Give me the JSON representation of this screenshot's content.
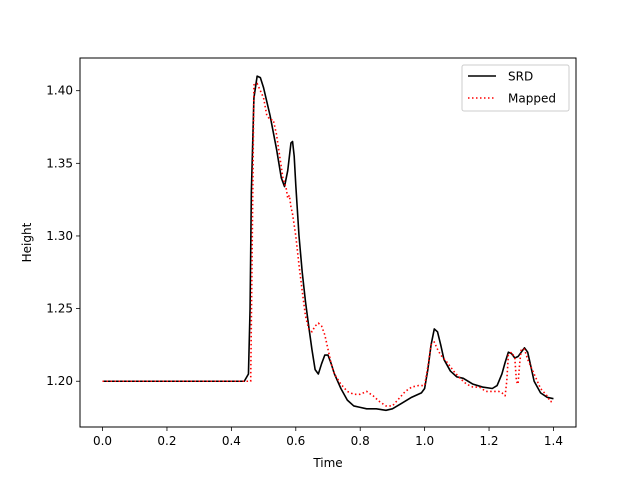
{
  "chart_data": {
    "type": "line",
    "xlabel": "Time",
    "ylabel": "Height",
    "xlim": [
      -0.07,
      1.47
    ],
    "ylim": [
      1.1685,
      1.4225
    ],
    "xticks": [
      0.0,
      0.2,
      0.4,
      0.6,
      0.8,
      1.0,
      1.2,
      1.4
    ],
    "xtick_labels": [
      "0.0",
      "0.2",
      "0.4",
      "0.6",
      "0.8",
      "1.0",
      "1.2",
      "1.4"
    ],
    "yticks": [
      1.2,
      1.25,
      1.3,
      1.35,
      1.4
    ],
    "ytick_labels": [
      "1.20",
      "1.25",
      "1.30",
      "1.35",
      "1.40"
    ],
    "grid": false,
    "legend_position": "top-right",
    "series": [
      {
        "name": "SRD",
        "color": "#000000",
        "style": "solid",
        "x": [
          0.0,
          0.2,
          0.44,
          0.453,
          0.458,
          0.462,
          0.47,
          0.48,
          0.49,
          0.5,
          0.52,
          0.54,
          0.555,
          0.565,
          0.575,
          0.585,
          0.59,
          0.595,
          0.6,
          0.61,
          0.62,
          0.63,
          0.64,
          0.65,
          0.66,
          0.67,
          0.68,
          0.69,
          0.7,
          0.71,
          0.72,
          0.74,
          0.76,
          0.78,
          0.8,
          0.82,
          0.85,
          0.88,
          0.9,
          0.93,
          0.96,
          0.99,
          1.0,
          1.01,
          1.02,
          1.03,
          1.04,
          1.05,
          1.06,
          1.08,
          1.1,
          1.12,
          1.15,
          1.18,
          1.21,
          1.225,
          1.24,
          1.25,
          1.26,
          1.27,
          1.28,
          1.29,
          1.3,
          1.31,
          1.32,
          1.33,
          1.34,
          1.36,
          1.38,
          1.4
        ],
        "y": [
          1.2,
          1.2,
          1.2,
          1.205,
          1.25,
          1.33,
          1.395,
          1.41,
          1.409,
          1.402,
          1.383,
          1.36,
          1.34,
          1.334,
          1.345,
          1.364,
          1.365,
          1.355,
          1.335,
          1.3,
          1.275,
          1.255,
          1.238,
          1.222,
          1.208,
          1.205,
          1.212,
          1.218,
          1.218,
          1.212,
          1.205,
          1.195,
          1.187,
          1.183,
          1.182,
          1.181,
          1.181,
          1.18,
          1.181,
          1.185,
          1.189,
          1.192,
          1.195,
          1.208,
          1.225,
          1.236,
          1.234,
          1.225,
          1.215,
          1.207,
          1.203,
          1.202,
          1.198,
          1.196,
          1.195,
          1.197,
          1.205,
          1.213,
          1.22,
          1.219,
          1.216,
          1.217,
          1.22,
          1.223,
          1.22,
          1.21,
          1.2,
          1.192,
          1.189,
          1.188
        ]
      },
      {
        "name": "Mapped",
        "color": "#ff0000",
        "style": "dotted",
        "x": [
          0.0,
          0.2,
          0.45,
          0.46,
          0.465,
          0.47,
          0.48,
          0.49,
          0.5,
          0.51,
          0.52,
          0.53,
          0.54,
          0.55,
          0.56,
          0.57,
          0.575,
          0.58,
          0.585,
          0.59,
          0.6,
          0.61,
          0.62,
          0.63,
          0.64,
          0.65,
          0.66,
          0.67,
          0.68,
          0.69,
          0.7,
          0.71,
          0.72,
          0.74,
          0.76,
          0.78,
          0.8,
          0.82,
          0.84,
          0.86,
          0.88,
          0.9,
          0.92,
          0.94,
          0.96,
          0.98,
          1.0,
          1.01,
          1.02,
          1.03,
          1.04,
          1.05,
          1.07,
          1.09,
          1.11,
          1.13,
          1.15,
          1.17,
          1.19,
          1.21,
          1.23,
          1.24,
          1.25,
          1.255,
          1.26,
          1.27,
          1.28,
          1.285,
          1.29,
          1.295,
          1.3,
          1.31,
          1.32,
          1.34,
          1.36,
          1.38,
          1.39,
          1.4
        ],
        "y": [
          1.2,
          1.2,
          1.2,
          1.2,
          1.3,
          1.404,
          1.405,
          1.4,
          1.395,
          1.383,
          1.38,
          1.38,
          1.37,
          1.355,
          1.34,
          1.333,
          1.326,
          1.328,
          1.32,
          1.315,
          1.3,
          1.28,
          1.262,
          1.245,
          1.236,
          1.234,
          1.238,
          1.24,
          1.238,
          1.232,
          1.222,
          1.212,
          1.205,
          1.198,
          1.193,
          1.191,
          1.191,
          1.193,
          1.19,
          1.186,
          1.183,
          1.183,
          1.188,
          1.193,
          1.196,
          1.197,
          1.197,
          1.21,
          1.225,
          1.227,
          1.222,
          1.218,
          1.213,
          1.207,
          1.202,
          1.198,
          1.196,
          1.196,
          1.193,
          1.193,
          1.193,
          1.192,
          1.19,
          1.2,
          1.218,
          1.22,
          1.216,
          1.2,
          1.198,
          1.212,
          1.222,
          1.222,
          1.215,
          1.205,
          1.195,
          1.19,
          1.186,
          1.186
        ]
      }
    ]
  }
}
